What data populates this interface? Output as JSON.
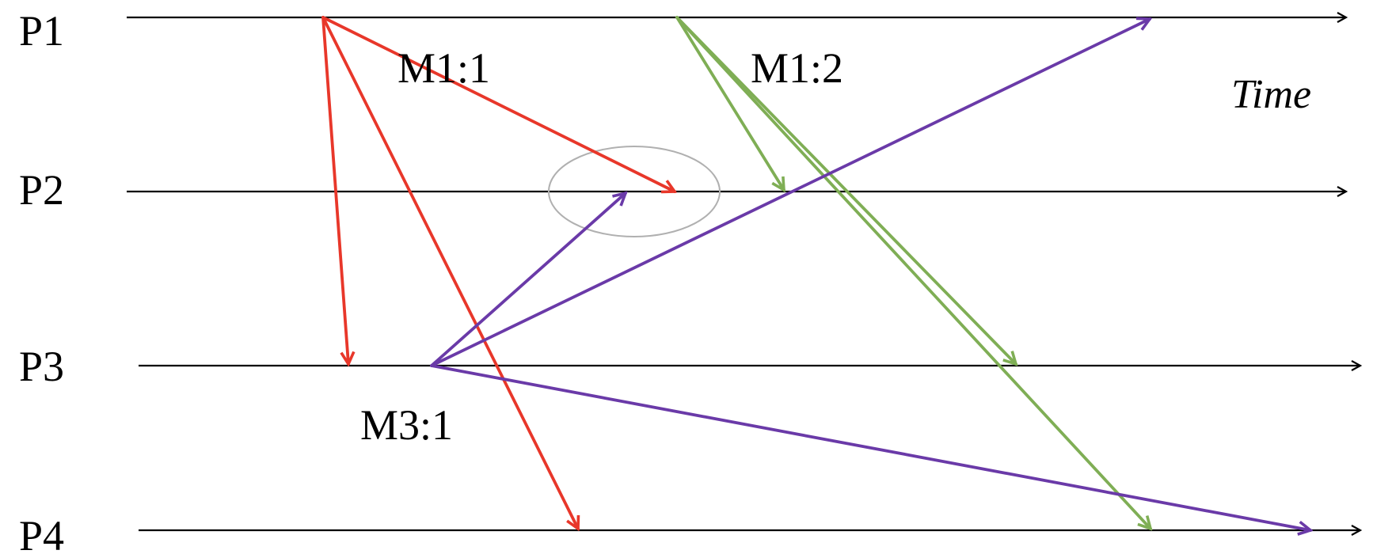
{
  "processes": [
    {
      "id": "P1",
      "label": "P1"
    },
    {
      "id": "P2",
      "label": "P2"
    },
    {
      "id": "P3",
      "label": "P3"
    },
    {
      "id": "P4",
      "label": "P4"
    }
  ],
  "time_label": "Time",
  "message_labels": {
    "m1_1": "M1:1",
    "m1_2": "M1:2",
    "m3_1": "M3:1"
  },
  "colors": {
    "timeline": "#000000",
    "m1_1": "#e8372a",
    "m1_2": "#7fae55",
    "m3_1": "#6a3aa8",
    "highlight_ellipse": "#b0b0b0"
  },
  "messages": [
    {
      "name": "m1-1-to-p2",
      "group": "m1_1",
      "from": "P1",
      "to": "P2"
    },
    {
      "name": "m1-1-to-p3",
      "group": "m1_1",
      "from": "P1",
      "to": "P3"
    },
    {
      "name": "m1-1-to-p4",
      "group": "m1_1",
      "from": "P1",
      "to": "P4"
    },
    {
      "name": "m1-2-to-p2",
      "group": "m1_2",
      "from": "P1",
      "to": "P2"
    },
    {
      "name": "m1-2-to-p3",
      "group": "m1_2",
      "from": "P1",
      "to": "P3"
    },
    {
      "name": "m1-2-to-p4",
      "group": "m1_2",
      "from": "P1",
      "to": "P4"
    },
    {
      "name": "m3-1-to-p2",
      "group": "m3_1",
      "from": "P3",
      "to": "P2"
    },
    {
      "name": "m3-1-to-p1",
      "group": "m3_1",
      "from": "P3",
      "to": "P1"
    },
    {
      "name": "m3-1-to-p4",
      "group": "m3_1",
      "from": "P3",
      "to": "P4"
    }
  ]
}
